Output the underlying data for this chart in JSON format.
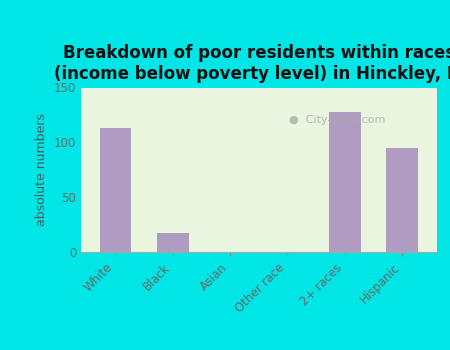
{
  "categories": [
    "White",
    "Black",
    "Asian",
    "Other race",
    "2+ races",
    "Hispanic"
  ],
  "values": [
    113,
    17,
    0,
    0,
    128,
    95
  ],
  "bar_color": "#b09cc0",
  "title": "Breakdown of poor residents within races\n(income below poverty level) in Hinckley, IL",
  "ylabel": "absolute numbers",
  "ylim": [
    0,
    150
  ],
  "yticks": [
    0,
    50,
    100,
    150
  ],
  "bg_color": "#00e5e5",
  "plot_bg_color": "#eaf5e0",
  "title_fontsize": 12,
  "axis_label_fontsize": 9,
  "tick_fontsize": 8.5,
  "watermark": "City-Data.com",
  "watermark_icon": "●"
}
